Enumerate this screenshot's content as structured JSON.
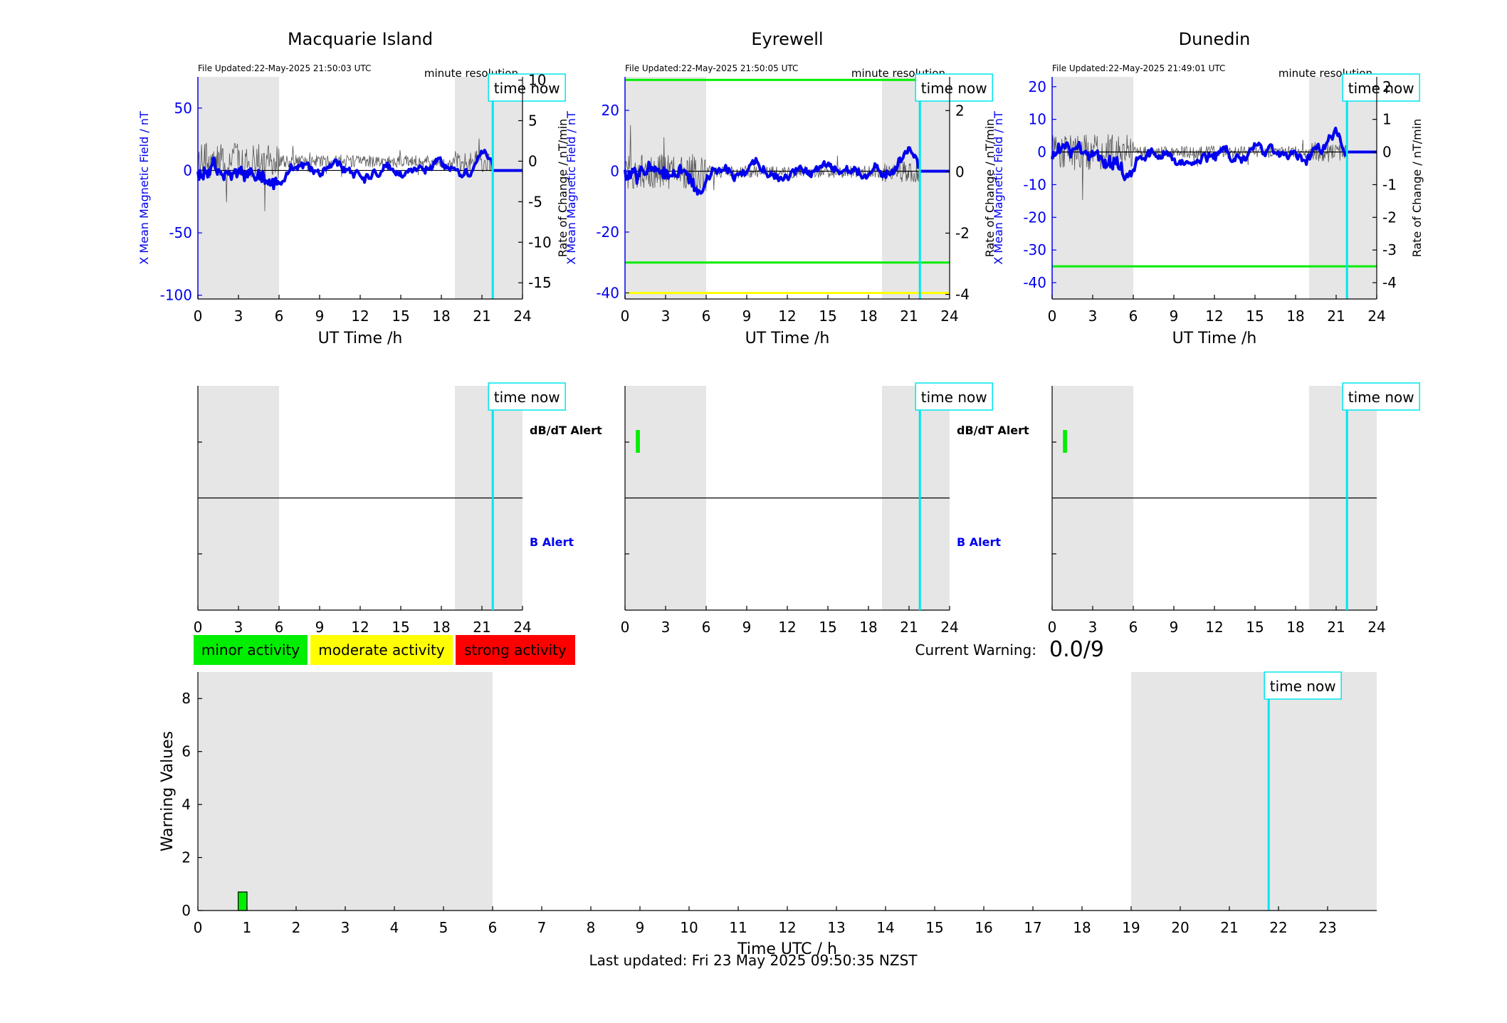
{
  "colors": {
    "blue": "#0000ee",
    "cyan": "#00e5ee",
    "green": "#00ee00",
    "yellow": "#ffff00",
    "red": "#ff0000",
    "night_shade": "#e6e6e6",
    "dbdt_trace": "#555555"
  },
  "time_now_label": "time now",
  "ut_axis": {
    "label": "UT Time /h",
    "ticks": [
      0,
      3,
      6,
      9,
      12,
      15,
      18,
      21,
      24
    ],
    "range": [
      0,
      24
    ]
  },
  "night_bands": [
    [
      0,
      6
    ],
    [
      19,
      24
    ]
  ],
  "time_now_hour": 21.8,
  "left_ylabel": "X Mean Magnetic Field / nT",
  "right_ylabel": "Rate of Change / nT/min",
  "minute_resolution": "minute resolution",
  "stations": [
    {
      "title": "Macquarie Island",
      "updated": "File Updated:22-May-2025 21:50:03 UTC",
      "left_range": [
        -103,
        75
      ],
      "left_ticks": [
        50,
        0,
        -50,
        -100
      ],
      "right_range": [
        -17,
        10.4
      ],
      "right_ticks": [
        10,
        5,
        0,
        -5,
        -10,
        -15
      ],
      "thresholds": [],
      "alerts_dbdt": [],
      "alerts_b": [],
      "show_alert_labels": true,
      "alert_label_dbdt": "dB/dT Alert",
      "alert_label_b": "B Alert"
    },
    {
      "title": "Eyrewell",
      "updated": "File Updated:22-May-2025 21:50:05 UTC",
      "left_range": [
        -42,
        31
      ],
      "left_ticks": [
        20,
        0,
        -20,
        -40
      ],
      "right_range": [
        -4.15,
        3.1
      ],
      "right_ticks": [
        2,
        0,
        -2,
        -4
      ],
      "thresholds": [
        {
          "value": 30,
          "color": "#00ee00"
        },
        {
          "value": -30,
          "color": "#00ee00"
        },
        {
          "value": -40,
          "color": "#ffff00"
        }
      ],
      "alerts_dbdt": [
        [
          0.8,
          1.1
        ]
      ],
      "alerts_b": [],
      "show_alert_labels": true,
      "alert_label_dbdt": "dB/dT Alert",
      "alert_label_b": "B Alert"
    },
    {
      "title": "Dunedin",
      "updated": "File Updated:22-May-2025 21:49:01 UTC",
      "left_range": [
        -45,
        23
      ],
      "left_ticks": [
        20,
        10,
        0,
        -10,
        -20,
        -30,
        -40
      ],
      "right_range": [
        -4.5,
        2.3
      ],
      "right_ticks": [
        2,
        1,
        0,
        -1,
        -2,
        -3,
        -4
      ],
      "thresholds": [
        {
          "value": -35,
          "color": "#00ee00"
        }
      ],
      "alerts_dbdt": [
        [
          0.8,
          1.1
        ]
      ],
      "alerts_b": [],
      "show_alert_labels": false,
      "alert_label_dbdt": "",
      "alert_label_b": ""
    }
  ],
  "legend": [
    {
      "label": "minor activity",
      "color": "#00ee00"
    },
    {
      "label": "moderate activity",
      "color": "#ffff00"
    },
    {
      "label": "strong activity",
      "color": "#ff0000"
    }
  ],
  "current_warning": {
    "label": "Current Warning:",
    "value": "0.0/9"
  },
  "chart_data": {
    "type": "bar",
    "title": "",
    "xlabel": "Time UTC / h",
    "ylabel": "Warning Values",
    "xlim": [
      0,
      24
    ],
    "ylim": [
      0,
      9
    ],
    "x_ticks": [
      0,
      1,
      2,
      3,
      4,
      5,
      6,
      7,
      8,
      9,
      10,
      11,
      12,
      13,
      14,
      15,
      16,
      17,
      18,
      19,
      20,
      21,
      22,
      23
    ],
    "y_ticks": [
      0,
      2,
      4,
      6,
      8
    ],
    "night_bands": [
      [
        0,
        6
      ],
      [
        19,
        24
      ]
    ],
    "time_now_hour": 21.8,
    "bars": [
      {
        "x_start": 0.82,
        "x_end": 1.0,
        "value": 0.7,
        "color": "#00ee00"
      }
    ]
  },
  "footer": {
    "last_updated": "Last updated: Fri 23 May 2025 09:50:35 NZST"
  }
}
